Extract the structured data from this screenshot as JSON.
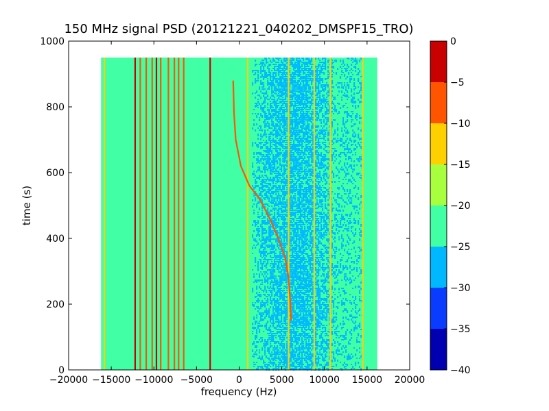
{
  "chart_data": {
    "type": "heatmap",
    "title": "150 MHz signal PSD (20121221_040202_DMSPF15_TRO)",
    "xlabel": "frequency (Hz)",
    "ylabel": "time (s)",
    "xlim": [
      -20000,
      20000
    ],
    "ylim": [
      0,
      1000
    ],
    "x_ticks": [
      -20000,
      -15000,
      -10000,
      -5000,
      0,
      5000,
      10000,
      15000,
      20000
    ],
    "x_tick_labels": [
      "−20000",
      "−15000",
      "−10000",
      "−5000",
      "0",
      "5000",
      "10000",
      "15000",
      "20000"
    ],
    "y_ticks": [
      0,
      200,
      400,
      600,
      800,
      1000
    ],
    "y_tick_labels": [
      "0",
      "200",
      "400",
      "600",
      "800",
      "1000"
    ],
    "data_extent": {
      "x": [
        -16200,
        16200
      ],
      "y": [
        0,
        950
      ]
    },
    "background_level": [
      -25,
      -20
    ],
    "noise_region": {
      "x": [
        1500,
        14500
      ],
      "level": [
        -30,
        -25
      ]
    },
    "colorbar": {
      "range": [
        -40,
        0
      ],
      "boundaries": [
        -40,
        -35,
        -30,
        -25,
        -20,
        -15,
        -10,
        -5,
        0
      ],
      "tick_labels": [
        "0",
        "−5",
        "−10",
        "−15",
        "−20",
        "−25",
        "−30",
        "−35",
        "−40"
      ],
      "colors": [
        "#0000b0",
        "#0a3cff",
        "#00b8ff",
        "#40ffa5",
        "#a8ff3e",
        "#ffd000",
        "#ff5500",
        "#c80000"
      ]
    },
    "vertical_lines": [
      {
        "x": -15800,
        "level": -15
      },
      {
        "x": -12200,
        "level": -5
      },
      {
        "x": -11600,
        "level": -10
      },
      {
        "x": -10900,
        "level": -10
      },
      {
        "x": -10200,
        "level": -10
      },
      {
        "x": -9700,
        "level": -5
      },
      {
        "x": -9200,
        "level": -10
      },
      {
        "x": -8300,
        "level": -10
      },
      {
        "x": -7600,
        "level": -10
      },
      {
        "x": -7100,
        "level": -10
      },
      {
        "x": -6500,
        "level": -10
      },
      {
        "x": -3400,
        "level": -5
      },
      {
        "x": 1000,
        "level": -15
      },
      {
        "x": 5800,
        "level": -15
      },
      {
        "x": 8800,
        "level": -15
      },
      {
        "x": 10700,
        "level": -15
      },
      {
        "x": 14500,
        "level": -15
      }
    ],
    "drift_trace": {
      "level": -10,
      "points": [
        [
          -700,
          880
        ],
        [
          -600,
          780
        ],
        [
          -400,
          700
        ],
        [
          200,
          620
        ],
        [
          1200,
          560
        ],
        [
          2400,
          520
        ],
        [
          3600,
          460
        ],
        [
          4600,
          400
        ],
        [
          5400,
          340
        ],
        [
          5800,
          280
        ],
        [
          6000,
          200
        ],
        [
          6100,
          150
        ]
      ]
    }
  }
}
